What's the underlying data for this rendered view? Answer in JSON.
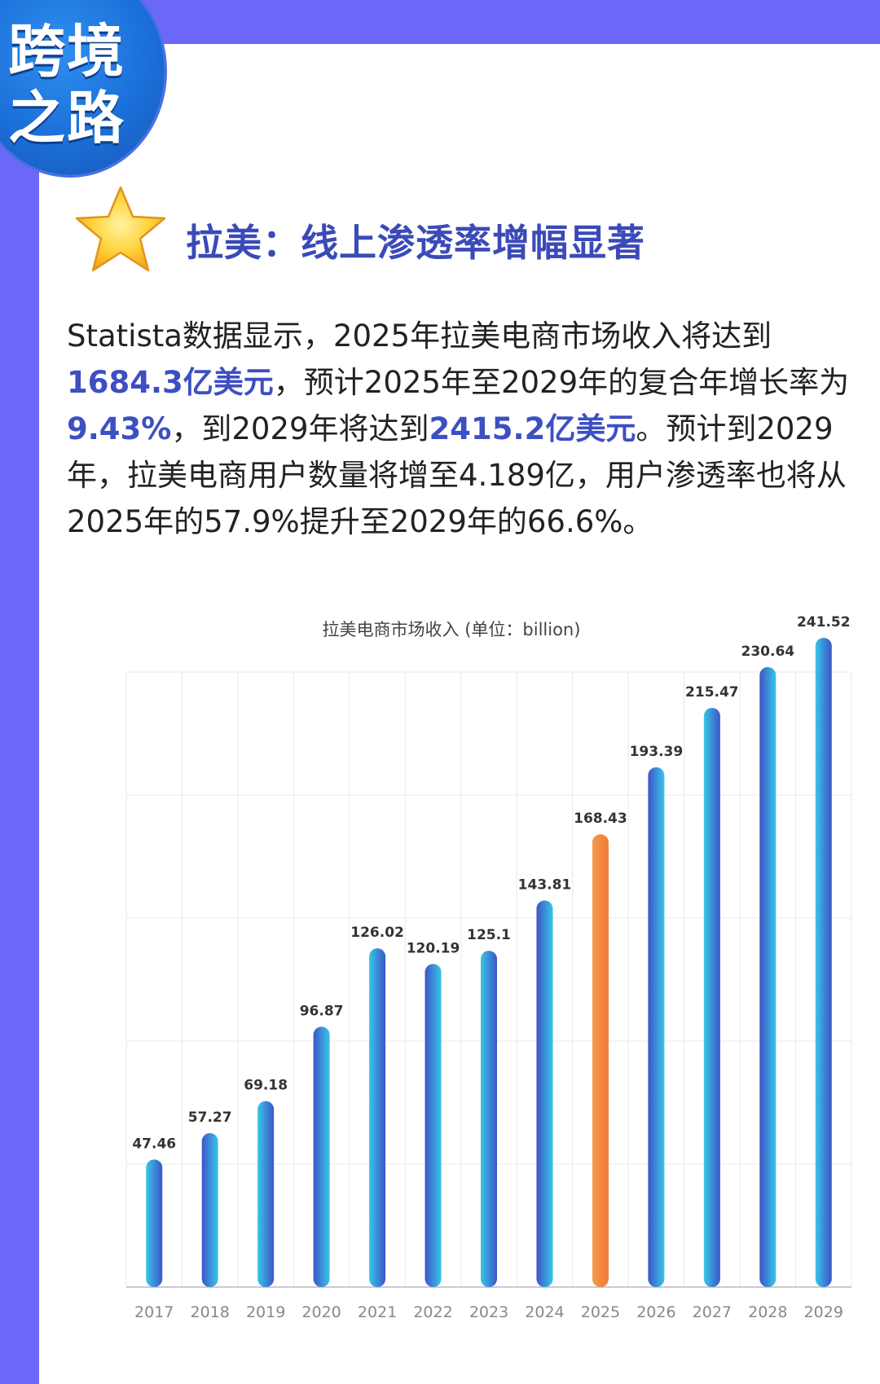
{
  "badge": {
    "line1": "跨境",
    "line2": "之路"
  },
  "heading": "拉美：线上渗透率增幅显著",
  "paragraph": [
    {
      "text": "Statista数据显示，2025年拉美电商市场收入将达到",
      "highlight": false
    },
    {
      "text": "1684.3亿美元",
      "highlight": true
    },
    {
      "text": "，预计2025年至2029年的复合年增长率为",
      "highlight": false
    },
    {
      "text": "9.43%",
      "highlight": true
    },
    {
      "text": "，到2029年将达到",
      "highlight": false
    },
    {
      "text": "2415.2亿美元",
      "highlight": true
    },
    {
      "text": "。预计到2029年，拉美电商用户数量将增至4.189亿，用户渗透率也将从2025年的57.9%提升至2029年的66.6%。",
      "highlight": false
    }
  ],
  "colors": {
    "frame": "#6b68f7",
    "highlight": "#3d4fc2",
    "bar_blue": "#3d55c8",
    "bar_cyan": "#38c6e8",
    "bar_highlight": "#f07a3a"
  },
  "chart_data": {
    "type": "bar",
    "title": "拉美电商市场收入 (单位：billion)",
    "categories": [
      "2017",
      "2018",
      "2019",
      "2020",
      "2021",
      "2022",
      "2023",
      "2024",
      "2025",
      "2026",
      "2027",
      "2028",
      "2029"
    ],
    "values": [
      47.46,
      57.27,
      69.18,
      96.87,
      126.02,
      120.19,
      125.1,
      143.81,
      168.43,
      193.39,
      215.47,
      230.64,
      241.52
    ],
    "value_labels": [
      "47.46",
      "57.27",
      "69.18",
      "96.87",
      "126.02",
      "120.19",
      "125.1",
      "143.81",
      "168.43",
      "193.39",
      "215.47",
      "230.64",
      "241.52"
    ],
    "highlight_category": "2025",
    "ylim": [
      0,
      250
    ],
    "grid": true,
    "show_y_tick_labels": false
  }
}
